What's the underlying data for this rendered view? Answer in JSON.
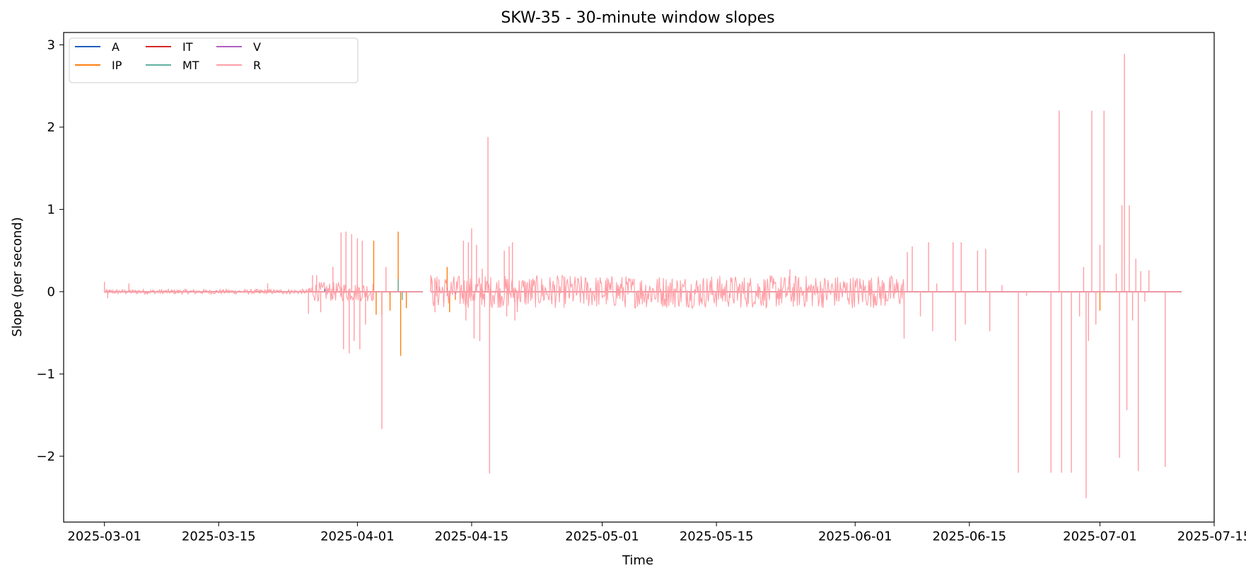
{
  "chart_data": {
    "type": "line",
    "title": "SKW-35 - 30-minute window slopes",
    "xlabel": "Time",
    "ylabel": "Slope (per second)",
    "x_axis_type": "date",
    "xlim": [
      "2025-02-24",
      "2025-07-15"
    ],
    "ylim": [
      -2.8,
      3.15
    ],
    "x_ticks": [
      "2025-03-01",
      "2025-03-15",
      "2025-04-01",
      "2025-04-15",
      "2025-05-01",
      "2025-05-15",
      "2025-06-01",
      "2025-06-15",
      "2025-07-01",
      "2025-07-15"
    ],
    "y_ticks": [
      -2,
      -1,
      0,
      1,
      2,
      3
    ],
    "y_tick_labels": [
      "−2",
      "−1",
      "0",
      "1",
      "2",
      "3"
    ],
    "grid": false,
    "legend": {
      "position": "top-left",
      "columns": 4
    },
    "data_start": "2025-03-01",
    "data_end": "2025-07-11",
    "gap": {
      "start": "2025-04-09",
      "end": "2025-04-10"
    },
    "series": [
      {
        "name": "A",
        "color": "#1f5fbf",
        "spikes": [
          [
            "2025-03-28",
            0.05
          ],
          [
            "2025-04-05",
            -0.04
          ]
        ]
      },
      {
        "name": "IP",
        "color": "#ff7f0e",
        "spikes": [
          [
            "2025-03-10",
            -0.02
          ],
          [
            "2025-03-20",
            -0.02
          ],
          [
            "2025-04-03",
            0.62
          ],
          [
            "2025-04-03.3",
            -0.28
          ],
          [
            "2025-04-04",
            -0.28
          ],
          [
            "2025-04-05",
            -0.23
          ],
          [
            "2025-04-06",
            0.73
          ],
          [
            "2025-04-06.3",
            -0.78
          ],
          [
            "2025-04-07",
            -0.2
          ],
          [
            "2025-04-12",
            0.3
          ],
          [
            "2025-04-12.3",
            -0.25
          ],
          [
            "2025-04-13",
            -0.1
          ],
          [
            "2025-07-01",
            -0.23
          ]
        ]
      },
      {
        "name": "IT",
        "color": "#d62728",
        "spikes": [
          [
            "2025-04-12",
            0.05
          ],
          [
            "2025-04-13",
            -0.05
          ]
        ]
      },
      {
        "name": "MT",
        "color": "#5fb3a1",
        "spikes": [
          [
            "2025-04-06",
            0.15
          ],
          [
            "2025-04-06.5",
            -0.1
          ]
        ]
      },
      {
        "name": "V",
        "color": "#b05fc4",
        "spikes": [
          [
            "2025-04-01",
            0.02
          ]
        ]
      },
      {
        "name": "R",
        "color": "#ff9ea5",
        "spikes": [
          [
            "2025-03-01",
            0.12
          ],
          [
            "2025-03-01.4",
            -0.08
          ],
          [
            "2025-03-04",
            0.1
          ],
          [
            "2025-03-21",
            0.1
          ],
          [
            "2025-03-26",
            -0.27
          ],
          [
            "2025-03-26.5",
            0.2
          ],
          [
            "2025-03-27",
            0.2
          ],
          [
            "2025-03-27.5",
            -0.25
          ],
          [
            "2025-03-29",
            0.3
          ],
          [
            "2025-03-30",
            0.72
          ],
          [
            "2025-03-30.3",
            -0.7
          ],
          [
            "2025-03-30.6",
            0.73
          ],
          [
            "2025-03-31",
            -0.75
          ],
          [
            "2025-03-31.3",
            0.7
          ],
          [
            "2025-03-31.6",
            -0.6
          ],
          [
            "2025-04-01",
            0.65
          ],
          [
            "2025-04-01.3",
            -0.7
          ],
          [
            "2025-04-01.6",
            0.62
          ],
          [
            "2025-04-02",
            -0.4
          ],
          [
            "2025-04-04",
            -1.67
          ],
          [
            "2025-04-04.5",
            0.3
          ],
          [
            "2025-04-10",
            0.2
          ],
          [
            "2025-04-10.5",
            -0.25
          ],
          [
            "2025-04-11",
            0.15
          ],
          [
            "2025-04-14",
            0.62
          ],
          [
            "2025-04-14.3",
            -0.35
          ],
          [
            "2025-04-14.6",
            0.6
          ],
          [
            "2025-04-15",
            0.77
          ],
          [
            "2025-04-15.3",
            -0.57
          ],
          [
            "2025-04-15.6",
            0.57
          ],
          [
            "2025-04-16",
            -0.6
          ],
          [
            "2025-04-16.3",
            0.28
          ],
          [
            "2025-04-17",
            1.88
          ],
          [
            "2025-04-17.2",
            -2.21
          ],
          [
            "2025-04-19",
            0.5
          ],
          [
            "2025-04-19.3",
            -0.3
          ],
          [
            "2025-04-19.6",
            0.55
          ],
          [
            "2025-04-20",
            0.6
          ],
          [
            "2025-04-20.3",
            -0.35
          ],
          [
            "2025-04-20.6",
            -0.25
          ],
          [
            "2025-05-24",
            0.27
          ],
          [
            "2025-06-07",
            -0.57
          ],
          [
            "2025-06-07.4",
            0.48
          ],
          [
            "2025-06-08",
            0.55
          ],
          [
            "2025-06-09",
            -0.3
          ],
          [
            "2025-06-10",
            0.6
          ],
          [
            "2025-06-10.5",
            -0.48
          ],
          [
            "2025-06-11",
            0.1
          ],
          [
            "2025-06-13",
            0.6
          ],
          [
            "2025-06-13.3",
            -0.6
          ],
          [
            "2025-06-14",
            0.6
          ],
          [
            "2025-06-14.5",
            -0.4
          ],
          [
            "2025-06-16",
            0.5
          ],
          [
            "2025-06-17",
            0.52
          ],
          [
            "2025-06-17.5",
            -0.48
          ],
          [
            "2025-06-19",
            0.08
          ],
          [
            "2025-06-21",
            -2.2
          ],
          [
            "2025-06-22",
            -0.05
          ],
          [
            "2025-06-25",
            -2.2
          ],
          [
            "2025-06-26",
            2.2
          ],
          [
            "2025-06-26.3",
            -2.2
          ],
          [
            "2025-06-27.5",
            -2.2
          ],
          [
            "2025-06-28.5",
            -0.3
          ],
          [
            "2025-06-29",
            0.3
          ],
          [
            "2025-06-29.3",
            -2.51
          ],
          [
            "2025-06-29.6",
            -0.6
          ],
          [
            "2025-06-30",
            2.2
          ],
          [
            "2025-06-30.5",
            -0.4
          ],
          [
            "2025-07-01",
            0.57
          ],
          [
            "2025-07-01.5",
            2.2
          ],
          [
            "2025-07-03",
            0.22
          ],
          [
            "2025-07-03.4",
            -2.02
          ],
          [
            "2025-07-03.7",
            1.05
          ],
          [
            "2025-07-04",
            2.89
          ],
          [
            "2025-07-04.3",
            -1.44
          ],
          [
            "2025-07-04.6",
            1.05
          ],
          [
            "2025-07-05",
            -0.35
          ],
          [
            "2025-07-05.4",
            0.4
          ],
          [
            "2025-07-05.7",
            -2.18
          ],
          [
            "2025-07-06",
            0.25
          ],
          [
            "2025-07-06.5",
            -0.12
          ],
          [
            "2025-07-07",
            0.26
          ],
          [
            "2025-07-09",
            -2.13
          ]
        ]
      }
    ],
    "noise_bands": [
      {
        "series": "R",
        "from": "2025-03-01",
        "to": "2025-03-26",
        "amplitude": 0.03
      },
      {
        "series": "R",
        "from": "2025-03-26",
        "to": "2025-04-03",
        "amplitude": 0.12
      },
      {
        "series": "R",
        "from": "2025-04-10",
        "to": "2025-04-22",
        "amplitude": 0.2
      },
      {
        "series": "R",
        "from": "2025-04-22",
        "to": "2025-06-07",
        "amplitude": 0.2
      }
    ]
  }
}
